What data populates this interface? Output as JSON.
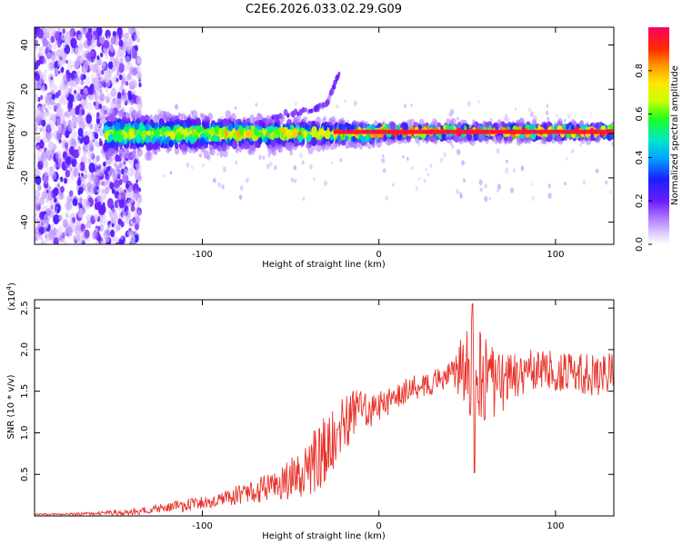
{
  "title": "C2E6.2026.033.02.29.G09",
  "chart_data": [
    {
      "type": "heatmap",
      "name": "spectrogram",
      "title": "C2E6.2026.033.02.29.G09",
      "xlabel": "Height of straight line (km)",
      "ylabel": "Frequency (Hz)",
      "xlim": [
        -195,
        133
      ],
      "ylim": [
        -50,
        48
      ],
      "xticks": [
        -100,
        0,
        100
      ],
      "xtick_labels": [
        "-100",
        "0",
        "100"
      ],
      "yticks": [
        -40,
        -20,
        0,
        20,
        40
      ],
      "ytick_labels": [
        "-40",
        "-20",
        "0",
        "20",
        "40"
      ],
      "grid": false,
      "colorbar": {
        "label": "Normalized spectral amplitude",
        "range": [
          0,
          1
        ],
        "ticks": [
          0.0,
          0.2,
          0.4,
          0.6,
          0.8
        ],
        "tick_labels": [
          "0.0",
          "0.2",
          "0.4",
          "0.6",
          "0.8"
        ]
      },
      "features": [
        {
          "description": "Strong carrier band near 0 Hz",
          "x_range": [
            -150,
            133
          ],
          "freq": 0.5,
          "amplitude": 0.9
        },
        {
          "description": "Diffuse scatter at low heights",
          "x_range": [
            -195,
            -140
          ],
          "freq_range": [
            -50,
            48
          ],
          "amplitude": 0.2
        },
        {
          "description": "Upward curving branch",
          "x": [
            -60,
            -40,
            -30,
            -22
          ],
          "freq": [
            8,
            10,
            13,
            28
          ],
          "amplitude": 0.15
        }
      ]
    },
    {
      "type": "line",
      "name": "snr",
      "xlabel": "Height of straight line (km)",
      "ylabel": "SNR (10 * v/v)",
      "scale_label": "(x10",
      "scale_exponent": "4",
      "scale_close": ")",
      "xlim": [
        -195,
        133
      ],
      "ylim": [
        0,
        2.6
      ],
      "xticks": [
        -100,
        0,
        100
      ],
      "xtick_labels": [
        "-100",
        "0",
        "100"
      ],
      "yticks": [
        0.5,
        1.0,
        1.5,
        2.0,
        2.5
      ],
      "ytick_labels": [
        "0.5",
        "1.0",
        "1.5",
        "2.0",
        "2.5"
      ],
      "grid": false,
      "series": [
        {
          "name": "SNR",
          "color": "#e8332b",
          "x": [
            -195,
            -180,
            -160,
            -140,
            -120,
            -100,
            -90,
            -80,
            -70,
            -60,
            -50,
            -40,
            -35,
            -30,
            -25,
            -20,
            -15,
            -10,
            -5,
            0,
            10,
            20,
            30,
            40,
            45,
            50,
            52,
            55,
            60,
            65,
            70,
            75,
            80,
            90,
            100,
            110,
            120,
            125,
            133
          ],
          "y": [
            0.02,
            0.02,
            0.03,
            0.05,
            0.1,
            0.15,
            0.2,
            0.25,
            0.3,
            0.35,
            0.45,
            0.6,
            0.7,
            0.8,
            0.95,
            1.1,
            1.2,
            1.3,
            1.25,
            1.3,
            1.45,
            1.55,
            1.6,
            1.7,
            1.75,
            1.8,
            1.75,
            1.7,
            1.6,
            1.55,
            1.6,
            1.7,
            1.7,
            1.75,
            1.75,
            1.7,
            1.7,
            1.65,
            1.75
          ],
          "variability": [
            0.01,
            0.01,
            0.02,
            0.04,
            0.06,
            0.09,
            0.1,
            0.12,
            0.15,
            0.18,
            0.25,
            0.35,
            0.4,
            0.45,
            0.4,
            0.35,
            0.3,
            0.25,
            0.2,
            0.2,
            0.15,
            0.15,
            0.15,
            0.15,
            0.3,
            0.55,
            0.7,
            0.6,
            0.55,
            0.5,
            0.35,
            0.3,
            0.3,
            0.25,
            0.25,
            0.25,
            0.25,
            0.25,
            0.25
          ],
          "peak": {
            "x": 53,
            "y": 2.55
          },
          "dip": {
            "x": 54,
            "y": 0.52
          }
        }
      ]
    }
  ]
}
